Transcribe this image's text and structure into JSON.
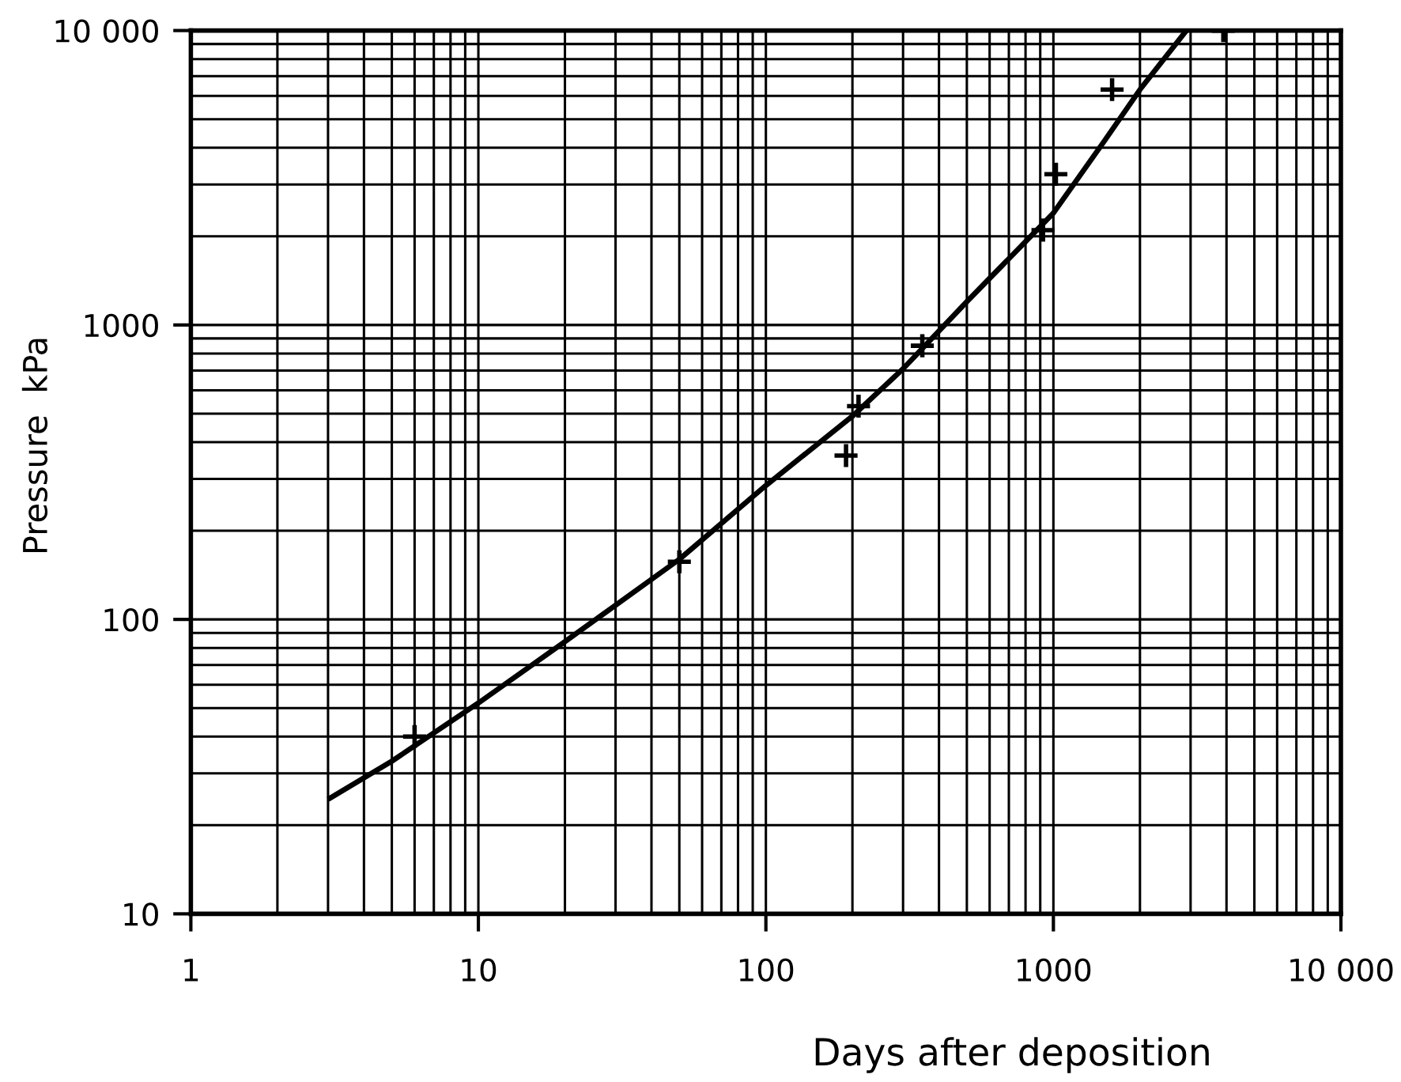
{
  "chart_data": {
    "type": "scatter",
    "xlabel": "Days after deposition",
    "ylabel": "Pressure  kPa",
    "log": "xy",
    "grid": true,
    "xlim": [
      1,
      10000
    ],
    "ylim": [
      10,
      10000
    ],
    "xticks": [
      1,
      10,
      100,
      1000,
      {
        "value": 10000,
        "label": "10 000"
      }
    ],
    "yticks": [
      10,
      100,
      1000,
      {
        "value": 10000,
        "label": "10 000"
      }
    ],
    "series": [
      {
        "color": "#000000",
        "marker": "cross",
        "x": [
          6,
          50,
          190,
          210,
          350,
          920,
          1020,
          1600,
          3900
        ],
        "values": [
          40,
          157,
          360,
          530,
          850,
          2100,
          3250,
          6300,
          10000
        ]
      },
      {
        "type": "line",
        "color": "#000000",
        "marker": "none",
        "line_style": "solid",
        "x": [
          3,
          5,
          10,
          20,
          50,
          100,
          200,
          300,
          500,
          1000,
          1500,
          2000,
          2900
        ],
        "values": [
          24.5,
          33,
          52,
          84,
          160,
          285,
          490,
          710,
          1200,
          2400,
          4200,
          6300,
          10000
        ]
      }
    ]
  }
}
